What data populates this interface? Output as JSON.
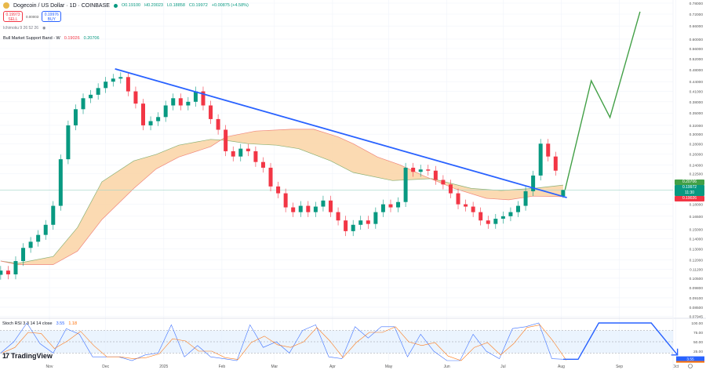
{
  "header": {
    "symbol_title": "Dogecoin / US Dollar · 1D · COINBASE",
    "ohlc": {
      "o": "O0.19100",
      "h": "H0.20023",
      "l": "L0.18858",
      "c": "C0.19972",
      "change": "+0.00875 (+4.58%)"
    },
    "sell_price": "0.19973",
    "sell_label": "SELL",
    "spread": "0.00003",
    "buy_price": "0.19976",
    "buy_label": "BUY",
    "indicator_ichimoku": "Ichimoku 9 26 52 26",
    "band_label": "Bull Market Support Band - W",
    "band_value_1": "0.19026",
    "band_value_2": "0.20706"
  },
  "stoch_legend": {
    "label": "Stoch RSI 3 3 14 14 close",
    "k": "3.55",
    "d": "1.18"
  },
  "branding": {
    "name": "TradingView"
  },
  "price_tags": {
    "band_upper": "0.20706",
    "last": "0.19972",
    "countdown": "11:30",
    "band_lower": "0.19026"
  },
  "colors": {
    "up": "#089981",
    "down": "#f23645",
    "trendline": "#2962ff",
    "projection": "#43a047",
    "band_fill": "#fad3a4",
    "band_line_upper": "#8bb174",
    "band_line_lower": "#f0857a",
    "stoch_k": "#2962ff",
    "stoch_d": "#ff6d00",
    "stoch_bg": "#e3effd"
  },
  "chart_data": [
    {
      "type": "candlestick",
      "scale": "log",
      "ylim": [
        0.07945,
        0.78
      ],
      "grid": true,
      "y_ticks": [
        "0.78000",
        "0.72000",
        "0.66000",
        "0.60000",
        "0.56000",
        "0.52000",
        "0.48000",
        "0.44000",
        "0.41000",
        "0.38000",
        "0.35000",
        "0.32000",
        "0.30000",
        "0.28000",
        "0.26000",
        "0.24000",
        "0.22500",
        "0.18000",
        "0.16500",
        "0.15000",
        "0.14000",
        "0.13000",
        "0.12000",
        "0.11200",
        "0.10500",
        "0.09800",
        "0.09100",
        "0.08500",
        "0.07945"
      ],
      "x_ticks": [
        "Nov",
        "Dec",
        "2025",
        "Feb",
        "Mar",
        "Apr",
        "May",
        "Jun",
        "Jul",
        "Aug",
        "Sep",
        "Oct"
      ],
      "x_tick_dates": [
        "2024-11-01",
        "2024-12-01",
        "2025-01-01",
        "2025-02-01",
        "2025-03-01",
        "2025-04-01",
        "2025-05-01",
        "2025-06-01",
        "2025-07-01",
        "2025-08-01",
        "2025-09-01",
        "2025-10-01"
      ],
      "candles": [
        [
          "2024-10-06",
          0.111
        ],
        [
          "2024-10-10",
          0.108
        ],
        [
          "2024-10-14",
          0.119
        ],
        [
          "2024-10-18",
          0.131
        ],
        [
          "2024-10-22",
          0.137
        ],
        [
          "2024-10-26",
          0.144
        ],
        [
          "2024-10-30",
          0.155
        ],
        [
          "2024-11-03",
          0.178
        ],
        [
          "2024-11-07",
          0.25
        ],
        [
          "2024-11-11",
          0.32
        ],
        [
          "2024-11-15",
          0.36
        ],
        [
          "2024-11-19",
          0.39
        ],
        [
          "2024-11-23",
          0.4
        ],
        [
          "2024-11-27",
          0.42
        ],
        [
          "2024-12-01",
          0.44
        ],
        [
          "2024-12-05",
          0.45
        ],
        [
          "2024-12-09",
          0.455
        ],
        [
          "2024-12-13",
          0.41
        ],
        [
          "2024-12-17",
          0.375
        ],
        [
          "2024-12-21",
          0.32
        ],
        [
          "2024-12-25",
          0.33
        ],
        [
          "2024-12-29",
          0.34
        ],
        [
          "2025-01-02",
          0.37
        ],
        [
          "2025-01-06",
          0.39
        ],
        [
          "2025-01-10",
          0.37
        ],
        [
          "2025-01-14",
          0.38
        ],
        [
          "2025-01-18",
          0.41
        ],
        [
          "2025-01-22",
          0.37
        ],
        [
          "2025-01-26",
          0.335
        ],
        [
          "2025-01-30",
          0.31
        ],
        [
          "2025-02-03",
          0.265
        ],
        [
          "2025-02-07",
          0.255
        ],
        [
          "2025-02-11",
          0.27
        ],
        [
          "2025-02-15",
          0.265
        ],
        [
          "2025-02-19",
          0.245
        ],
        [
          "2025-02-23",
          0.235
        ],
        [
          "2025-02-27",
          0.205
        ],
        [
          "2025-03-03",
          0.195
        ],
        [
          "2025-03-07",
          0.176
        ],
        [
          "2025-03-11",
          0.17
        ],
        [
          "2025-03-15",
          0.178
        ],
        [
          "2025-03-19",
          0.17
        ],
        [
          "2025-03-23",
          0.177
        ],
        [
          "2025-03-27",
          0.185
        ],
        [
          "2025-03-31",
          0.17
        ],
        [
          "2025-04-04",
          0.16
        ],
        [
          "2025-04-08",
          0.148
        ],
        [
          "2025-04-12",
          0.155
        ],
        [
          "2025-04-16",
          0.16
        ],
        [
          "2025-04-20",
          0.156
        ],
        [
          "2025-04-24",
          0.17
        ],
        [
          "2025-04-28",
          0.18
        ],
        [
          "2025-05-02",
          0.176
        ],
        [
          "2025-05-06",
          0.183
        ],
        [
          "2025-05-10",
          0.235
        ],
        [
          "2025-05-14",
          0.228
        ],
        [
          "2025-05-18",
          0.232
        ],
        [
          "2025-05-22",
          0.23
        ],
        [
          "2025-05-26",
          0.215
        ],
        [
          "2025-05-30",
          0.208
        ],
        [
          "2025-06-03",
          0.195
        ],
        [
          "2025-06-07",
          0.18
        ],
        [
          "2025-06-11",
          0.177
        ],
        [
          "2025-06-15",
          0.17
        ],
        [
          "2025-06-19",
          0.16
        ],
        [
          "2025-06-23",
          0.156
        ],
        [
          "2025-06-27",
          0.162
        ],
        [
          "2025-07-01",
          0.165
        ],
        [
          "2025-07-05",
          0.17
        ],
        [
          "2025-07-09",
          0.178
        ],
        [
          "2025-07-13",
          0.198
        ],
        [
          "2025-07-17",
          0.222
        ],
        [
          "2025-07-21",
          0.28
        ],
        [
          "2025-07-25",
          0.255
        ],
        [
          "2025-07-29",
          0.23
        ],
        [
          "2025-08-02",
          0.19972
        ]
      ],
      "last_candle": {
        "open": 0.191,
        "high": 0.20023,
        "low": 0.18858,
        "close": 0.19972
      },
      "bull_market_support_band": {
        "upper_line": [
          [
            "2024-10-06",
            0.119
          ],
          [
            "2024-10-15",
            0.117
          ],
          [
            "2024-11-03",
            0.123
          ],
          [
            "2024-11-16",
            0.152
          ],
          [
            "2024-11-29",
            0.212
          ],
          [
            "2024-12-16",
            0.247
          ],
          [
            "2024-12-28",
            0.259
          ],
          [
            "2025-01-09",
            0.277
          ],
          [
            "2025-01-26",
            0.289
          ],
          [
            "2025-02-03",
            0.287
          ],
          [
            "2025-02-15",
            0.28
          ],
          [
            "2025-03-02",
            0.277
          ],
          [
            "2025-03-14",
            0.27
          ],
          [
            "2025-03-31",
            0.247
          ],
          [
            "2025-04-12",
            0.227
          ],
          [
            "2025-05-03",
            0.214
          ],
          [
            "2025-05-24",
            0.217
          ],
          [
            "2025-06-14",
            0.202
          ],
          [
            "2025-06-30",
            0.199
          ],
          [
            "2025-07-17",
            0.202
          ],
          [
            "2025-08-02",
            0.20706
          ]
        ],
        "lower_line": [
          [
            "2024-10-06",
            0.119
          ],
          [
            "2024-10-15",
            0.116
          ],
          [
            "2024-11-03",
            0.116
          ],
          [
            "2024-11-16",
            0.128
          ],
          [
            "2024-11-29",
            0.161
          ],
          [
            "2024-12-16",
            0.202
          ],
          [
            "2024-12-28",
            0.233
          ],
          [
            "2025-01-09",
            0.254
          ],
          [
            "2025-01-26",
            0.274
          ],
          [
            "2025-02-03",
            0.294
          ],
          [
            "2025-02-19",
            0.307
          ],
          [
            "2025-03-10",
            0.311
          ],
          [
            "2025-03-22",
            0.311
          ],
          [
            "2025-04-04",
            0.294
          ],
          [
            "2025-04-12",
            0.28
          ],
          [
            "2025-04-25",
            0.254
          ],
          [
            "2025-05-07",
            0.24
          ],
          [
            "2025-05-20",
            0.221
          ],
          [
            "2025-06-05",
            0.202
          ],
          [
            "2025-06-22",
            0.188
          ],
          [
            "2025-07-04",
            0.186
          ],
          [
            "2025-07-17",
            0.191
          ],
          [
            "2025-08-02",
            0.19026
          ]
        ]
      },
      "trendline": [
        [
          "2024-12-06",
          0.483
        ],
        [
          "2025-08-04",
          0.189
        ]
      ],
      "projection": [
        [
          "2025-08-03",
          0.2
        ],
        [
          "2025-08-17",
          0.443
        ],
        [
          "2025-08-27",
          0.339
        ],
        [
          "2025-09-12",
          0.733
        ]
      ],
      "last_price_line": 0.19972
    },
    {
      "type": "line",
      "title": "Stoch RSI 3 3 14 14 close",
      "ylim": [
        0,
        100
      ],
      "y_ticks": [
        "100.00",
        "75.00",
        "50.00",
        "25.00"
      ],
      "bands": [
        20,
        50,
        80
      ],
      "start_date": "2024-10-06",
      "step_days": 7,
      "series": [
        {
          "name": "K",
          "values": [
            20,
            50,
            100,
            45,
            20,
            85,
            70,
            10,
            10,
            10,
            0,
            15,
            20,
            95,
            10,
            40,
            10,
            5,
            0,
            95,
            35,
            50,
            20,
            80,
            95,
            10,
            5,
            90,
            60,
            90,
            90,
            10,
            70,
            25,
            0,
            0,
            70,
            25,
            5,
            85,
            90,
            100,
            5,
            3.55
          ]
        },
        {
          "name": "D",
          "values": [
            20,
            35,
            75,
            72,
            32,
            52,
            78,
            40,
            10,
            10,
            5,
            8,
            18,
            58,
            52,
            25,
            25,
            8,
            3,
            48,
            65,
            42,
            35,
            50,
            88,
            52,
            8,
            48,
            75,
            75,
            90,
            50,
            40,
            48,
            12,
            0,
            35,
            48,
            15,
            45,
            88,
            95,
            52,
            1.18
          ]
        }
      ],
      "projection": [
        [
          "2025-08-02",
          3.55
        ],
        [
          "2025-08-10",
          3.55
        ],
        [
          "2025-08-21",
          100
        ],
        [
          "2025-09-18",
          100
        ],
        [
          "2025-10-02",
          15
        ]
      ]
    }
  ]
}
